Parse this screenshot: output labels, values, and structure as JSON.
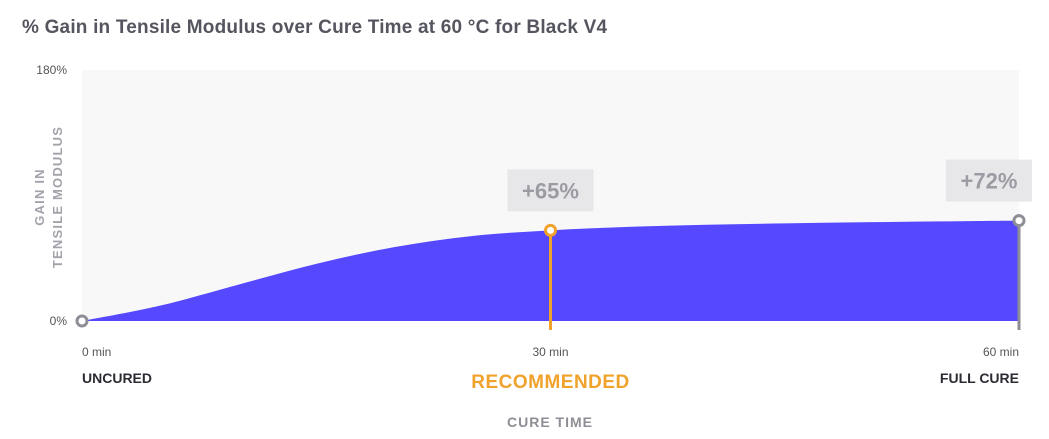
{
  "title": "% Gain in Tensile Modulus over Cure Time at 60 °C for Black V4",
  "colors": {
    "area": "#5548ff",
    "recommended": "#f0a22b",
    "marker_gray": "#8e8e96",
    "plot_bg": "#f8f8f8",
    "callout_bg": "#e7e7e9"
  },
  "chart_data": {
    "type": "area",
    "title": "% Gain in Tensile Modulus over Cure Time at 60 °C for Black V4",
    "xlabel": "CURE TIME",
    "ylabel_lines": [
      "GAIN IN",
      "TENSILE MODULUS"
    ],
    "xlim": [
      0,
      60
    ],
    "ylim": [
      0,
      180
    ],
    "y_ticks": [
      {
        "value": 0,
        "label": "0%"
      },
      {
        "value": 180,
        "label": "180%"
      }
    ],
    "x_ticks": [
      {
        "value": 0,
        "label": "0 min",
        "category": "UNCURED",
        "highlight": false
      },
      {
        "value": 30,
        "label": "30 min",
        "category": "RECOMMENDED",
        "highlight": true
      },
      {
        "value": 60,
        "label": "60 min",
        "category": "FULL CURE",
        "highlight": false
      }
    ],
    "series": [
      {
        "x": [
          0,
          5,
          10,
          15,
          20,
          25,
          30,
          35,
          40,
          45,
          50,
          55,
          60
        ],
        "y": [
          0,
          11,
          26,
          41,
          53,
          61,
          65,
          67.5,
          69,
          70,
          70.8,
          71.4,
          72
        ]
      }
    ],
    "annotations": [
      {
        "x": 30,
        "y": 65,
        "label": "+65%",
        "style": "recommended"
      },
      {
        "x": 60,
        "y": 72,
        "label": "+72%",
        "style": "gray"
      }
    ]
  }
}
